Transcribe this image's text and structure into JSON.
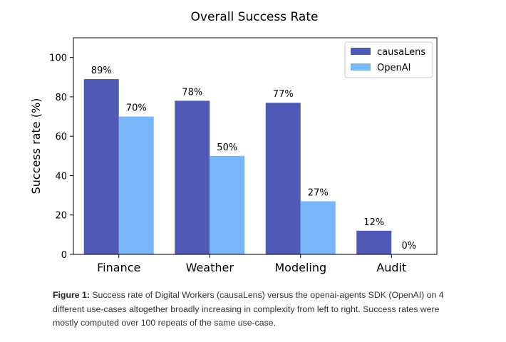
{
  "chart_data": {
    "type": "bar",
    "title": "Overall Success Rate",
    "xlabel": "",
    "ylabel": "Success rate (%)",
    "ylim": [
      0,
      110
    ],
    "yticks": [
      0,
      20,
      40,
      60,
      80,
      100
    ],
    "categories": [
      "Finance",
      "Weather",
      "Modeling",
      "Audit"
    ],
    "series": [
      {
        "name": "causaLens",
        "color": "#5059b3",
        "values": [
          89,
          78,
          77,
          12
        ],
        "labels": [
          "89%",
          "78%",
          "77%",
          "12%"
        ]
      },
      {
        "name": "OpenAI",
        "color": "#78b6fa",
        "values": [
          70,
          50,
          27,
          0
        ],
        "labels": [
          "70%",
          "50%",
          "27%",
          "0%"
        ]
      }
    ],
    "legend": "top-right",
    "grid": false
  },
  "caption": {
    "label": "Figure 1:",
    "text": " Success rate of Digital Workers (causaLens) versus the openai-agents SDK (OpenAI) on 4 different use-cases altogether broadly increasing in complexity from left to right. Success rates were mostly computed over 100 repeats of the same use-case."
  }
}
